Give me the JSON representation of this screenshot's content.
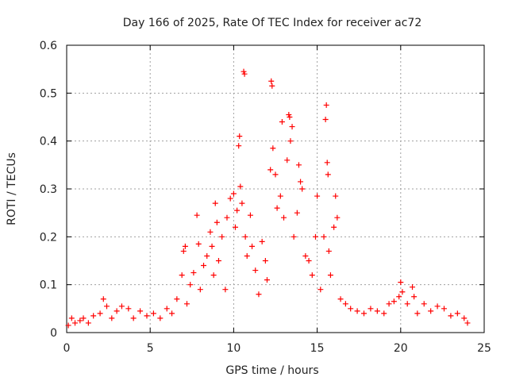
{
  "chart_data": {
    "type": "scatter",
    "title": "Day 166 of 2025, Rate Of TEC Index for receiver ac72",
    "xlabel": "GPS time / hours",
    "ylabel": "ROTI / TECUs",
    "xlim": [
      0,
      25
    ],
    "ylim": [
      0,
      0.6
    ],
    "xticks": [
      0,
      5,
      10,
      15,
      20,
      25
    ],
    "xtick_labels": [
      "0",
      "5",
      "10",
      "15",
      "20",
      "25"
    ],
    "yticks": [
      0,
      0.1,
      0.2,
      0.3,
      0.4,
      0.5,
      0.6
    ],
    "ytick_labels": [
      "0",
      "0.1",
      "0.2",
      "0.3",
      "0.4",
      "0.5",
      "0.6"
    ],
    "grid": true,
    "marker": "+",
    "marker_color": "#ff0000",
    "series": [
      {
        "name": "ROTI",
        "points": [
          [
            0.1,
            0.015
          ],
          [
            0.3,
            0.03
          ],
          [
            0.5,
            0.02
          ],
          [
            0.8,
            0.025
          ],
          [
            1.0,
            0.03
          ],
          [
            1.3,
            0.02
          ],
          [
            1.6,
            0.035
          ],
          [
            2.0,
            0.04
          ],
          [
            2.2,
            0.07
          ],
          [
            2.4,
            0.055
          ],
          [
            2.7,
            0.03
          ],
          [
            3.0,
            0.045
          ],
          [
            3.3,
            0.055
          ],
          [
            3.7,
            0.05
          ],
          [
            4.0,
            0.03
          ],
          [
            4.4,
            0.045
          ],
          [
            4.8,
            0.035
          ],
          [
            5.2,
            0.04
          ],
          [
            5.6,
            0.03
          ],
          [
            6.0,
            0.05
          ],
          [
            6.3,
            0.04
          ],
          [
            6.6,
            0.07
          ],
          [
            6.9,
            0.12
          ],
          [
            7.0,
            0.17
          ],
          [
            7.1,
            0.18
          ],
          [
            7.2,
            0.06
          ],
          [
            7.4,
            0.1
          ],
          [
            7.6,
            0.125
          ],
          [
            7.8,
            0.245
          ],
          [
            7.9,
            0.185
          ],
          [
            8.0,
            0.09
          ],
          [
            8.2,
            0.14
          ],
          [
            8.4,
            0.16
          ],
          [
            8.6,
            0.21
          ],
          [
            8.7,
            0.18
          ],
          [
            8.8,
            0.12
          ],
          [
            8.9,
            0.27
          ],
          [
            9.0,
            0.23
          ],
          [
            9.1,
            0.15
          ],
          [
            9.3,
            0.2
          ],
          [
            9.5,
            0.09
          ],
          [
            9.6,
            0.24
          ],
          [
            9.8,
            0.28
          ],
          [
            10.0,
            0.29
          ],
          [
            10.1,
            0.22
          ],
          [
            10.2,
            0.255
          ],
          [
            10.3,
            0.39
          ],
          [
            10.35,
            0.41
          ],
          [
            10.4,
            0.305
          ],
          [
            10.5,
            0.27
          ],
          [
            10.6,
            0.545
          ],
          [
            10.65,
            0.54
          ],
          [
            10.7,
            0.2
          ],
          [
            10.8,
            0.16
          ],
          [
            11.0,
            0.245
          ],
          [
            11.1,
            0.18
          ],
          [
            11.3,
            0.13
          ],
          [
            11.5,
            0.08
          ],
          [
            11.7,
            0.19
          ],
          [
            11.9,
            0.15
          ],
          [
            12.0,
            0.11
          ],
          [
            12.2,
            0.34
          ],
          [
            12.25,
            0.525
          ],
          [
            12.3,
            0.515
          ],
          [
            12.35,
            0.385
          ],
          [
            12.5,
            0.33
          ],
          [
            12.6,
            0.26
          ],
          [
            12.8,
            0.285
          ],
          [
            12.9,
            0.44
          ],
          [
            13.0,
            0.24
          ],
          [
            13.2,
            0.36
          ],
          [
            13.3,
            0.455
          ],
          [
            13.35,
            0.45
          ],
          [
            13.4,
            0.4
          ],
          [
            13.5,
            0.43
          ],
          [
            13.6,
            0.2
          ],
          [
            13.8,
            0.25
          ],
          [
            13.9,
            0.35
          ],
          [
            14.0,
            0.315
          ],
          [
            14.1,
            0.3
          ],
          [
            14.3,
            0.16
          ],
          [
            14.5,
            0.15
          ],
          [
            14.7,
            0.12
          ],
          [
            14.9,
            0.2
          ],
          [
            15.0,
            0.285
          ],
          [
            15.2,
            0.09
          ],
          [
            15.4,
            0.2
          ],
          [
            15.5,
            0.445
          ],
          [
            15.55,
            0.475
          ],
          [
            15.6,
            0.355
          ],
          [
            15.65,
            0.33
          ],
          [
            15.7,
            0.17
          ],
          [
            15.8,
            0.12
          ],
          [
            16.0,
            0.22
          ],
          [
            16.1,
            0.285
          ],
          [
            16.2,
            0.24
          ],
          [
            16.4,
            0.07
          ],
          [
            16.7,
            0.06
          ],
          [
            17.0,
            0.05
          ],
          [
            17.4,
            0.045
          ],
          [
            17.8,
            0.04
          ],
          [
            18.2,
            0.05
          ],
          [
            18.6,
            0.045
          ],
          [
            19.0,
            0.04
          ],
          [
            19.3,
            0.06
          ],
          [
            19.6,
            0.065
          ],
          [
            19.9,
            0.075
          ],
          [
            20.0,
            0.105
          ],
          [
            20.1,
            0.085
          ],
          [
            20.4,
            0.06
          ],
          [
            20.7,
            0.095
          ],
          [
            20.8,
            0.075
          ],
          [
            21.0,
            0.04
          ],
          [
            21.4,
            0.06
          ],
          [
            21.8,
            0.045
          ],
          [
            22.2,
            0.055
          ],
          [
            22.6,
            0.05
          ],
          [
            23.0,
            0.035
          ],
          [
            23.4,
            0.04
          ],
          [
            23.8,
            0.03
          ],
          [
            24.0,
            0.02
          ]
        ]
      }
    ]
  }
}
